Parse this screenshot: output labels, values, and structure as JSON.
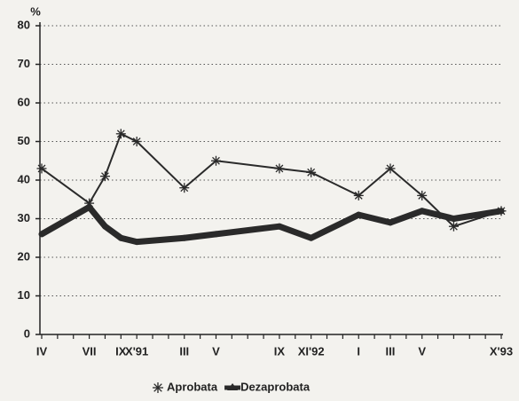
{
  "chart_data": {
    "type": "line",
    "y_label": "%",
    "categories": [
      "IV",
      null,
      null,
      "VII",
      null,
      "IX",
      "X'91",
      null,
      null,
      "III",
      null,
      "V",
      null,
      null,
      null,
      "IX",
      null,
      "XI'92",
      null,
      null,
      "I",
      null,
      "III",
      null,
      "V",
      null,
      null,
      null,
      null,
      "X'93"
    ],
    "series": [
      {
        "name": "Aprobata",
        "color": "#2a2a2a",
        "marker": "asterisk",
        "values": [
          43,
          null,
          null,
          34,
          41,
          52,
          50,
          null,
          null,
          38,
          null,
          45,
          null,
          null,
          null,
          43,
          null,
          42,
          null,
          null,
          36,
          null,
          43,
          null,
          36,
          null,
          28,
          null,
          null,
          32
        ]
      },
      {
        "name": "Dezaprobata",
        "color": "#2a2a2a",
        "marker": "thick",
        "values": [
          26,
          null,
          null,
          33,
          28,
          25,
          24,
          null,
          null,
          25,
          null,
          26,
          null,
          null,
          null,
          28,
          null,
          25,
          null,
          null,
          31,
          null,
          29,
          null,
          32,
          null,
          30,
          null,
          null,
          32
        ]
      }
    ],
    "ylim": [
      0,
      80
    ],
    "yticks": [
      0,
      10,
      20,
      30,
      40,
      50,
      60,
      70,
      80
    ],
    "grid": true,
    "legend": "bottom"
  }
}
